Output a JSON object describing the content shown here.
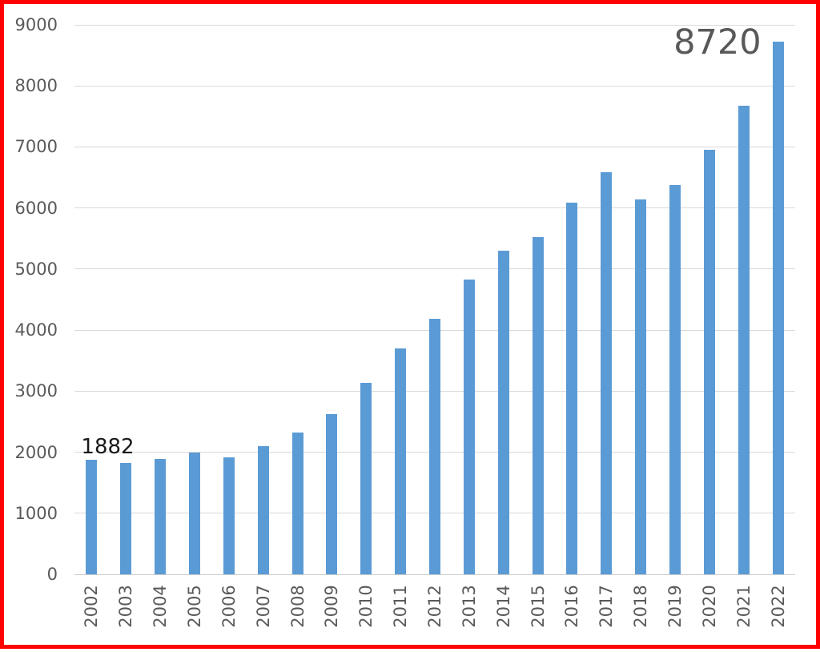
{
  "frame": {
    "border_color": "#ff0000"
  },
  "colors": {
    "bar": "#5b9bd5",
    "gridline": "#d9d9d9",
    "axis_label": "#595959",
    "background": "#ffffff"
  },
  "chart_data": {
    "type": "bar",
    "title": "",
    "xlabel": "",
    "ylabel": "",
    "categories": [
      "2002",
      "2003",
      "2004",
      "2005",
      "2006",
      "2007",
      "2008",
      "2009",
      "2010",
      "2011",
      "2012",
      "2013",
      "2014",
      "2015",
      "2016",
      "2017",
      "2018",
      "2019",
      "2020",
      "2021",
      "2022"
    ],
    "values": [
      1882,
      1820,
      1890,
      1990,
      1915,
      2105,
      2320,
      2630,
      3140,
      3700,
      4190,
      4830,
      5300,
      5520,
      6090,
      6580,
      6140,
      6380,
      6950,
      7680,
      8720
    ],
    "ylim": [
      0,
      9000
    ],
    "ytick_step": 1000,
    "ytick_labels": [
      "0",
      "1000",
      "2000",
      "3000",
      "4000",
      "5000",
      "6000",
      "7000",
      "8000",
      "9000"
    ],
    "grid": true,
    "legend": false,
    "bar_color": "#5b9bd5",
    "annotations": [
      {
        "text": "1882",
        "target": "2002",
        "color": "#1a1a1a",
        "size": "small"
      },
      {
        "text": "8720",
        "target": "2022",
        "color": "#595959",
        "size": "large"
      }
    ]
  }
}
